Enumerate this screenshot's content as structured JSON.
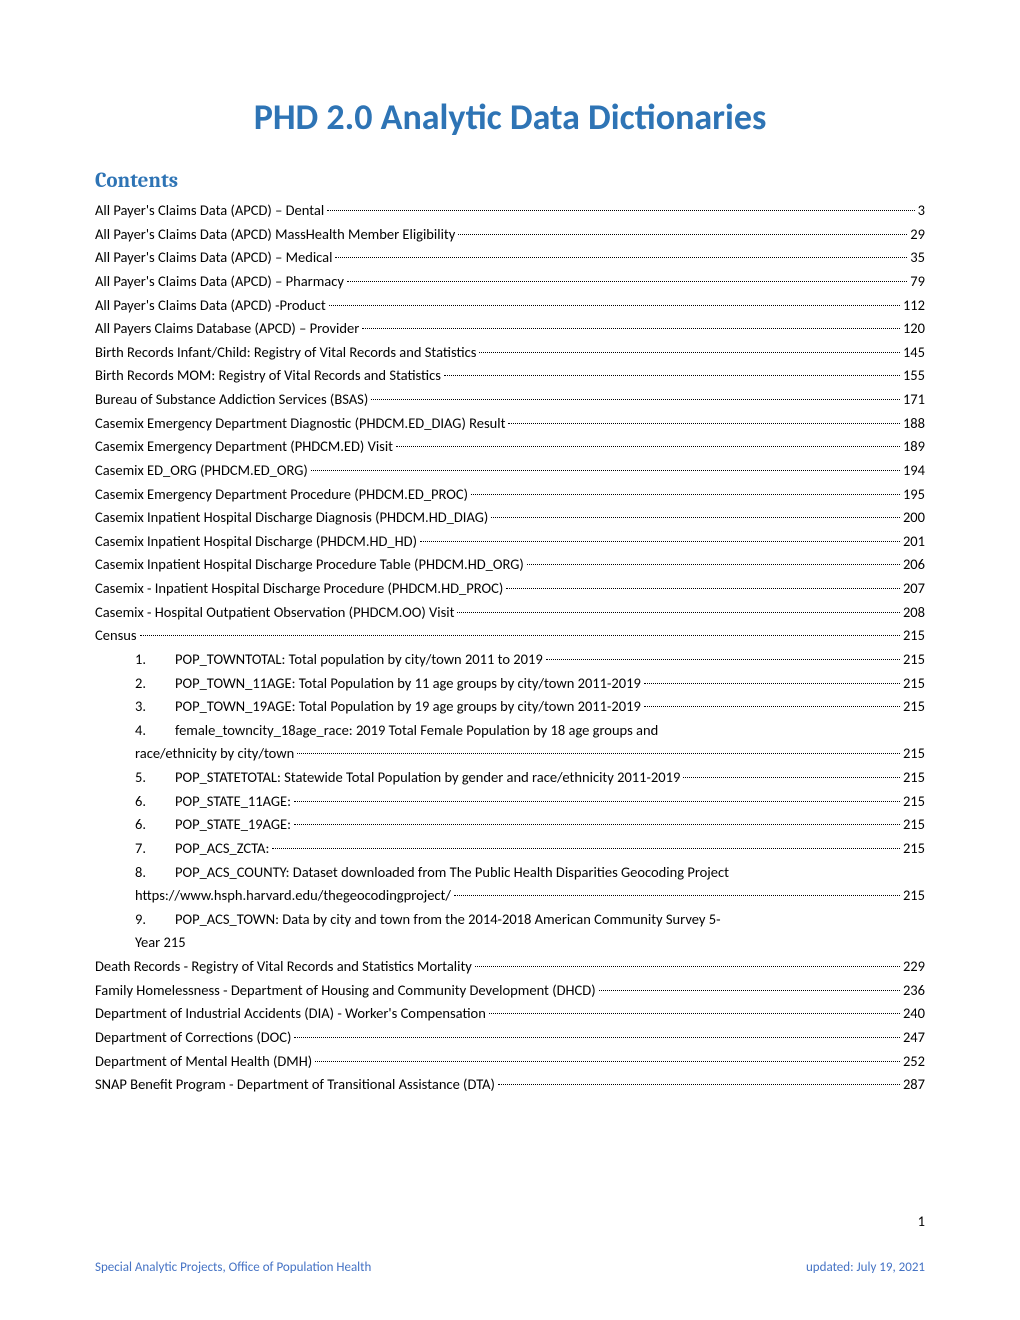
{
  "title": "PHD 2.0 Analytic Data Dictionaries",
  "contents_heading": "Contents",
  "page_number": "1",
  "footer_left": "Special Analytic Projects, Office of Population Health",
  "footer_right": "updated: July 19, 2021",
  "toc_entries": [
    {
      "label": "All Payer's Claims Data (APCD) – Dental",
      "page": "3",
      "indented": false
    },
    {
      "label": "All Payer's Claims Data (APCD) MassHealth Member Eligibility",
      "page": "29",
      "indented": false
    },
    {
      "label": "All Payer's Claims Data (APCD) – Medical",
      "page": "35",
      "indented": false
    },
    {
      "label": "All Payer's Claims Data (APCD) – Pharmacy",
      "page": "79",
      "indented": false
    },
    {
      "label": "All Payer's Claims Data (APCD) -Product",
      "page": "112",
      "indented": false
    },
    {
      "label": "All Payers Claims Database (APCD) – Provider",
      "page": "120",
      "indented": false
    },
    {
      "label": "Birth Records Infant/Child: Registry of Vital Records and Statistics",
      "page": "145",
      "indented": false
    },
    {
      "label": "Birth Records MOM: Registry of Vital Records and Statistics",
      "page": "155",
      "indented": false
    },
    {
      "label": "Bureau of Substance Addiction Services (BSAS)",
      "page": "171",
      "indented": false
    },
    {
      "label": "Casemix Emergency Department Diagnostic (PHDCM.ED_DIAG) Result",
      "page": "188",
      "indented": false
    },
    {
      "label": "Casemix Emergency Department (PHDCM.ED) Visit",
      "page": "189",
      "indented": false
    },
    {
      "label": "Casemix ED_ORG (PHDCM.ED_ORG)",
      "page": "194",
      "indented": false
    },
    {
      "label": "Casemix Emergency Department  Procedure (PHDCM.ED_PROC)",
      "page": "195",
      "indented": false
    },
    {
      "label": "Casemix Inpatient Hospital Discharge Diagnosis  (PHDCM.HD_DIAG)",
      "page": "200",
      "indented": false
    },
    {
      "label": "Casemix Inpatient Hospital Discharge (PHDCM.HD_HD)",
      "page": "201",
      "indented": false
    },
    {
      "label": "Casemix Inpatient Hospital Discharge Procedure Table (PHDCM.HD_ORG)",
      "page": "206",
      "indented": false
    },
    {
      "label": "Casemix - Inpatient Hospital Discharge  Procedure (PHDCM.HD_PROC)",
      "page": "207",
      "indented": false
    },
    {
      "label": "Casemix - Hospital Outpatient Observation (PHDCM.OO) Visit",
      "page": "208",
      "indented": false
    },
    {
      "label": "Census",
      "page": "215",
      "indented": false
    },
    {
      "num": "1.",
      "label": "POP_TOWNTOTAL: Total population by city/town 2011 to 2019",
      "page": "215",
      "indented": true
    },
    {
      "num": "2.",
      "label": "POP_TOWN_11AGE: Total Population by 11 age groups  by city/town 2011-2019",
      "page": "215",
      "indented": true
    },
    {
      "num": "3.",
      "label": "POP_TOWN_19AGE: Total Population by 19 age groups by city/town 2011-2019",
      "page": "215",
      "indented": true
    },
    {
      "num": "4.",
      "label": "female_towncity_18age_race: 2019 Total Female Population by 18 age groups and",
      "continuation": "race/ethnicity by city/town",
      "page": "215",
      "indented": true
    },
    {
      "num": "5.",
      "label": "POP_STATETOTAL:  Statewide Total Population by gender and race/ethnicity 2011-2019",
      "page": "215",
      "indented": true
    },
    {
      "num": "6.",
      "label": "POP_STATE_11AGE:",
      "page": "215",
      "indented": true
    },
    {
      "num": "6.",
      "label": "POP_STATE_19AGE:",
      "page": "215",
      "indented": true
    },
    {
      "num": "7.",
      "label": "POP_ACS_ZCTA:",
      "page": "215",
      "indented": true
    },
    {
      "num": "8.",
      "label": "POP_ACS_COUNTY: Dataset downloaded from The Public Health Disparities Geocoding Project",
      "continuation": "https://www.hsph.harvard.edu/thegeocodingproject/",
      "page": "215",
      "indented": true,
      "no_dots_first": true
    },
    {
      "num": "9.",
      "label": "POP_ACS_TOWN: Data by city and town from the 2014-2018 American Community Survey 5-",
      "continuation": "Year",
      "cont_inline_page": "215",
      "indented": true,
      "no_dots_first": true
    },
    {
      "label": "Death Records - Registry of Vital Records and Statistics Mortality",
      "page": "229",
      "indented": false
    },
    {
      "label": "Family Homelessness - Department of Housing and Community Development (DHCD)",
      "page": "236",
      "indented": false
    },
    {
      "label": "Department of Industrial Accidents (DIA) - Worker's Compensation",
      "page": "240",
      "indented": false
    },
    {
      "label": "Department of Corrections (DOC)",
      "page": "247",
      "indented": false
    },
    {
      "label": "Department of Mental Health (DMH)",
      "page": "252",
      "indented": false
    },
    {
      "label": "SNAP Benefit Program - Department of Transitional Assistance (DTA)",
      "page": "287",
      "indented": false
    }
  ]
}
